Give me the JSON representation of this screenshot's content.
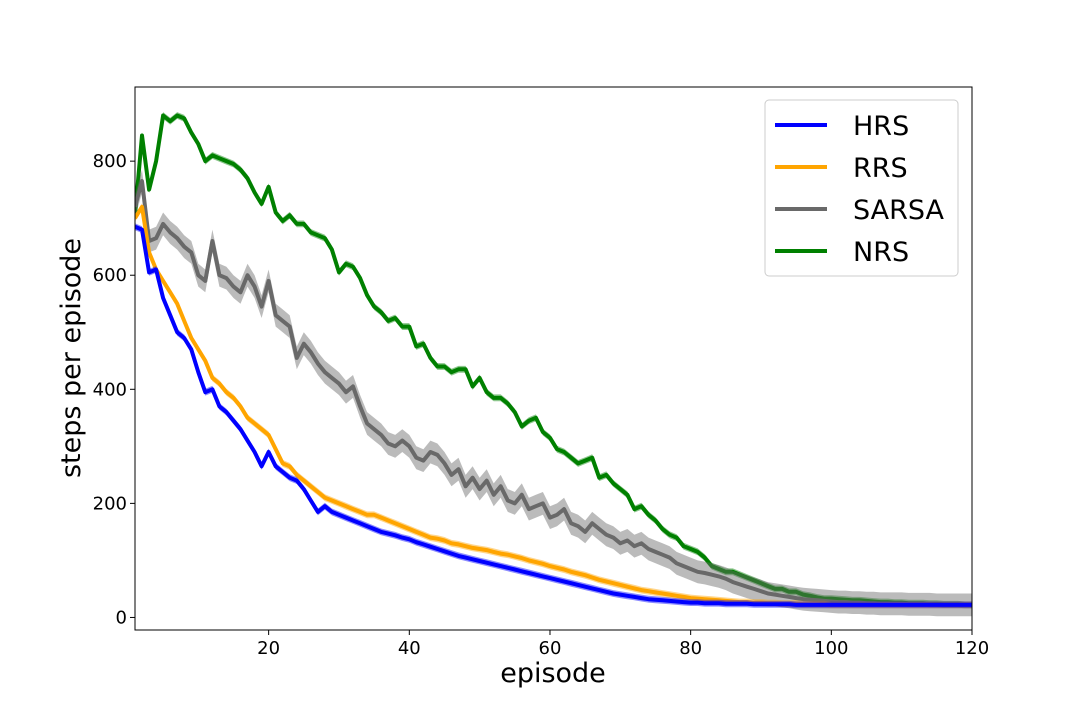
{
  "chart_data": {
    "type": "line",
    "title": "",
    "xlabel": "episode",
    "ylabel": "steps per episode",
    "xlim": [
      1,
      120
    ],
    "ylim": [
      -22,
      930
    ],
    "xticks": [
      20,
      40,
      60,
      80,
      100,
      120
    ],
    "yticks": [
      0,
      200,
      400,
      600,
      800
    ],
    "grid": false,
    "legend_position": "top-right",
    "x": [
      1,
      2,
      3,
      4,
      5,
      6,
      7,
      8,
      9,
      10,
      11,
      12,
      13,
      14,
      15,
      16,
      17,
      18,
      19,
      20,
      21,
      22,
      23,
      24,
      25,
      26,
      27,
      28,
      29,
      30,
      31,
      32,
      33,
      34,
      35,
      36,
      37,
      38,
      39,
      40,
      41,
      42,
      43,
      44,
      45,
      46,
      47,
      48,
      49,
      50,
      51,
      52,
      53,
      54,
      55,
      56,
      57,
      58,
      59,
      60,
      61,
      62,
      63,
      64,
      65,
      66,
      67,
      68,
      69,
      70,
      71,
      72,
      73,
      74,
      75,
      76,
      77,
      78,
      79,
      80,
      81,
      82,
      83,
      84,
      85,
      86,
      87,
      88,
      89,
      90,
      91,
      92,
      93,
      94,
      95,
      96,
      97,
      98,
      99,
      100,
      101,
      102,
      103,
      104,
      105,
      106,
      107,
      108,
      109,
      110,
      111,
      112,
      113,
      114,
      115,
      116,
      117,
      118,
      119,
      120
    ],
    "series": [
      {
        "name": "NRS",
        "color": "#008000",
        "band": 6,
        "values": [
          705,
          845,
          750,
          800,
          880,
          870,
          880,
          875,
          850,
          830,
          800,
          810,
          805,
          800,
          795,
          785,
          770,
          745,
          725,
          755,
          710,
          695,
          705,
          690,
          690,
          675,
          670,
          665,
          645,
          605,
          620,
          615,
          595,
          565,
          545,
          535,
          520,
          525,
          510,
          510,
          475,
          480,
          455,
          440,
          440,
          430,
          435,
          435,
          405,
          420,
          395,
          385,
          385,
          375,
          360,
          335,
          345,
          350,
          325,
          315,
          295,
          290,
          280,
          270,
          275,
          280,
          245,
          250,
          235,
          225,
          215,
          190,
          195,
          180,
          170,
          155,
          145,
          140,
          125,
          120,
          115,
          105,
          90,
          85,
          80,
          80,
          75,
          70,
          65,
          60,
          55,
          50,
          50,
          45,
          45,
          40,
          38,
          35,
          33,
          33,
          32,
          31,
          30,
          30,
          29,
          28,
          27,
          27,
          26,
          26,
          25,
          25,
          25,
          24,
          24,
          23,
          23,
          23,
          22,
          22
        ]
      },
      {
        "name": "SARSA",
        "color": "#696969",
        "band": 20,
        "values": [
          720,
          765,
          660,
          665,
          690,
          675,
          665,
          650,
          640,
          600,
          590,
          660,
          600,
          595,
          580,
          570,
          600,
          580,
          545,
          590,
          530,
          520,
          510,
          455,
          480,
          465,
          445,
          430,
          420,
          410,
          395,
          405,
          370,
          340,
          330,
          320,
          305,
          300,
          310,
          300,
          280,
          275,
          290,
          285,
          270,
          250,
          260,
          230,
          245,
          225,
          240,
          215,
          230,
          205,
          200,
          215,
          190,
          195,
          200,
          175,
          180,
          190,
          165,
          160,
          150,
          165,
          155,
          145,
          140,
          130,
          135,
          125,
          130,
          120,
          115,
          110,
          105,
          95,
          90,
          85,
          80,
          78,
          75,
          72,
          68,
          62,
          58,
          54,
          50,
          46,
          42,
          40,
          38,
          36,
          34,
          32,
          31,
          30,
          29,
          28,
          27,
          27,
          26,
          26,
          25,
          25,
          24,
          24,
          24,
          24,
          23,
          23,
          23,
          23,
          22,
          22,
          22,
          22,
          22,
          22
        ]
      },
      {
        "name": "RRS",
        "color": "#FFA500",
        "band": 6,
        "values": [
          700,
          720,
          640,
          610,
          590,
          570,
          550,
          520,
          490,
          470,
          450,
          420,
          410,
          395,
          385,
          370,
          350,
          340,
          330,
          320,
          295,
          270,
          265,
          250,
          240,
          230,
          220,
          210,
          205,
          200,
          195,
          190,
          185,
          180,
          180,
          175,
          170,
          165,
          160,
          155,
          150,
          145,
          140,
          138,
          135,
          130,
          128,
          125,
          122,
          120,
          118,
          115,
          112,
          110,
          107,
          104,
          100,
          97,
          94,
          90,
          87,
          84,
          80,
          77,
          74,
          70,
          66,
          63,
          60,
          57,
          54,
          51,
          48,
          46,
          44,
          42,
          40,
          38,
          36,
          34,
          33,
          32,
          31,
          30,
          29,
          28,
          27,
          27,
          26,
          26,
          25,
          25,
          24,
          24,
          24,
          23,
          23,
          23,
          23,
          22,
          22,
          22,
          22,
          22,
          22,
          22,
          22,
          22,
          22,
          22,
          22,
          22,
          22,
          22,
          22,
          22,
          22,
          22,
          22,
          22
        ]
      },
      {
        "name": "HRS",
        "color": "#0000FF",
        "band": 6,
        "values": [
          685,
          680,
          605,
          610,
          560,
          530,
          500,
          490,
          470,
          430,
          395,
          400,
          370,
          360,
          345,
          330,
          310,
          290,
          265,
          290,
          265,
          255,
          245,
          240,
          225,
          205,
          185,
          195,
          185,
          180,
          175,
          170,
          165,
          160,
          155,
          150,
          147,
          144,
          140,
          137,
          132,
          128,
          124,
          120,
          116,
          112,
          108,
          105,
          102,
          99,
          96,
          93,
          90,
          87,
          84,
          81,
          78,
          75,
          72,
          69,
          66,
          63,
          60,
          57,
          54,
          51,
          48,
          45,
          42,
          40,
          38,
          36,
          34,
          32,
          31,
          30,
          29,
          28,
          27,
          26,
          26,
          25,
          25,
          25,
          24,
          24,
          24,
          24,
          23,
          23,
          23,
          23,
          23,
          23,
          22,
          22,
          22,
          22,
          22,
          22,
          22,
          22,
          22,
          22,
          22,
          22,
          22,
          22,
          22,
          22,
          22,
          22,
          22,
          22,
          22,
          22,
          22,
          22,
          22,
          22
        ]
      }
    ],
    "legend_order": [
      "HRS",
      "RRS",
      "SARSA",
      "NRS"
    ]
  }
}
